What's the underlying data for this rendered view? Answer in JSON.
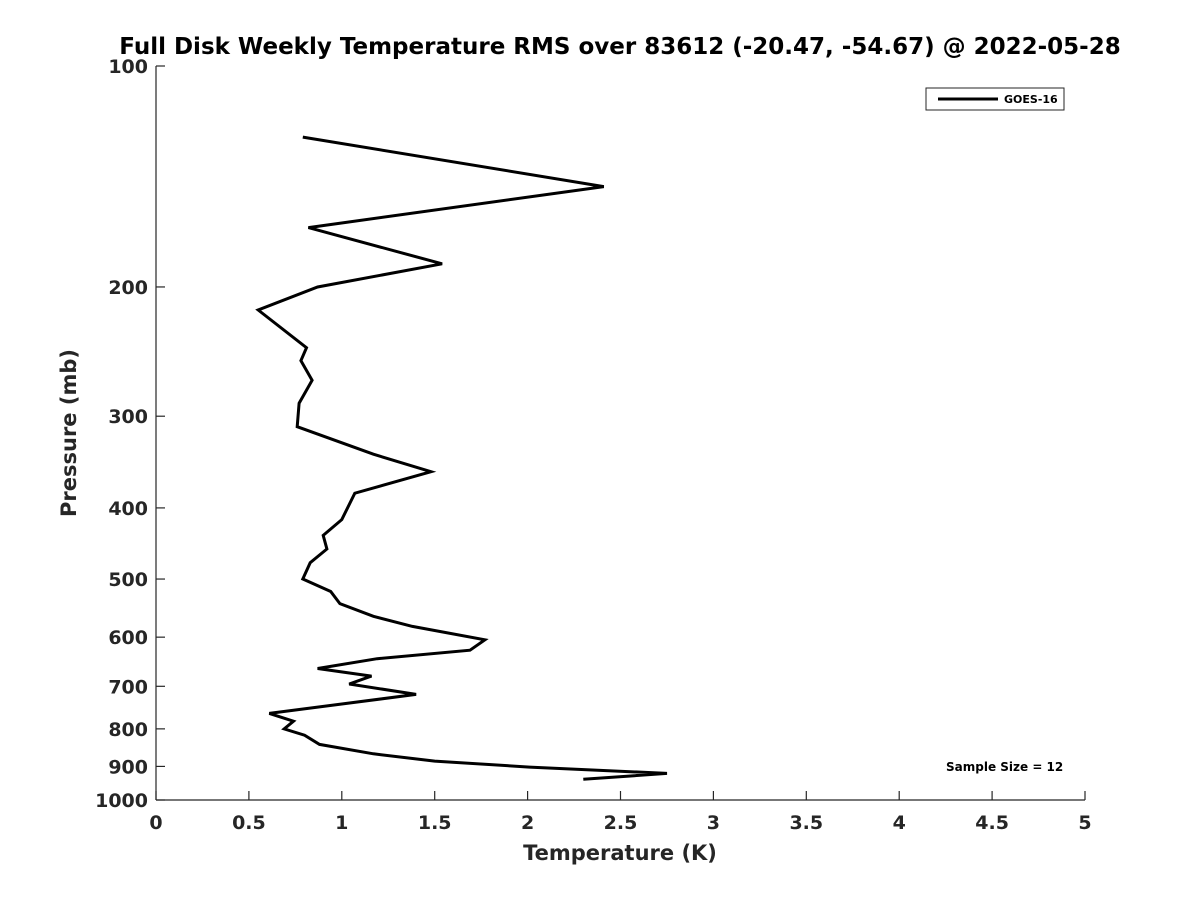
{
  "chart_data": {
    "type": "line",
    "title": "Full Disk Weekly Temperature RMS over 83612 (-20.47, -54.67) @ 2022-05-28",
    "xlabel": "Temperature (K)",
    "ylabel": "Pressure (mb)",
    "xlim": [
      0,
      5
    ],
    "ylim": [
      100,
      1000
    ],
    "y_scale": "log",
    "y_reversed": true,
    "x_ticks": [
      "0",
      "0.5",
      "1",
      "1.5",
      "2",
      "2.5",
      "3",
      "3.5",
      "4",
      "4.5",
      "5"
    ],
    "y_ticks": [
      "100",
      "200",
      "300",
      "400",
      "500",
      "600",
      "700",
      "800",
      "900",
      "1000"
    ],
    "grid": false,
    "legend_position": "top-right",
    "annotation": "Sample Size = 12",
    "series": [
      {
        "name": "GOES-16",
        "color": "#000000",
        "x": [
          0.79,
          2.41,
          0.82,
          1.54,
          0.87,
          0.55,
          0.81,
          0.78,
          0.84,
          0.77,
          0.76,
          1.17,
          1.48,
          1.07,
          1.0,
          0.9,
          0.92,
          0.83,
          0.79,
          0.94,
          0.99,
          1.17,
          1.38,
          1.77,
          1.69,
          1.19,
          0.87,
          1.16,
          1.04,
          1.4,
          1.0,
          0.61,
          0.74,
          0.69,
          0.8,
          0.88,
          1.17,
          1.5,
          2.01,
          2.75,
          2.3
        ],
        "y": [
          125,
          146,
          166,
          186,
          200,
          215,
          242,
          252,
          268,
          288,
          310,
          338,
          357,
          382,
          415,
          436,
          455,
          475,
          500,
          520,
          540,
          562,
          580,
          605,
          625,
          642,
          662,
          678,
          695,
          718,
          740,
          762,
          781,
          800,
          816,
          840,
          865,
          885,
          902,
          920,
          937
        ]
      }
    ]
  }
}
